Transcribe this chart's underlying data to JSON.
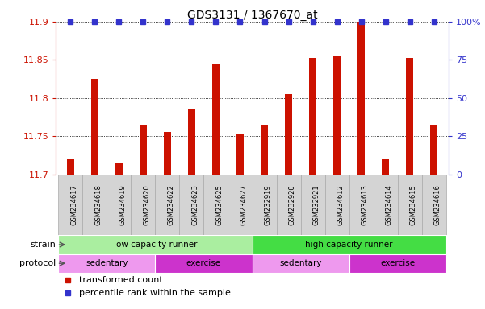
{
  "title": "GDS3131 / 1367670_at",
  "categories": [
    "GSM234617",
    "GSM234618",
    "GSM234619",
    "GSM234620",
    "GSM234622",
    "GSM234623",
    "GSM234625",
    "GSM234627",
    "GSM232919",
    "GSM232920",
    "GSM232921",
    "GSM234612",
    "GSM234613",
    "GSM234614",
    "GSM234615",
    "GSM234616"
  ],
  "bar_values": [
    11.72,
    11.825,
    11.715,
    11.765,
    11.755,
    11.785,
    11.845,
    11.752,
    11.765,
    11.805,
    11.852,
    11.855,
    11.9,
    11.72,
    11.852,
    11.765
  ],
  "bar_color": "#cc1100",
  "percentile_color": "#3333cc",
  "ylim_left": [
    11.7,
    11.9
  ],
  "ylim_right": [
    0,
    100
  ],
  "yticks_left": [
    11.7,
    11.75,
    11.8,
    11.85,
    11.9
  ],
  "yticks_right": [
    0,
    25,
    50,
    75,
    100
  ],
  "ytick_labels_left": [
    "11.7",
    "11.75",
    "11.8",
    "11.85",
    "11.9"
  ],
  "ytick_labels_right": [
    "0",
    "25",
    "50",
    "75",
    "100%"
  ],
  "strain_groups": [
    {
      "label": "low capacity runner",
      "start": 0,
      "end": 8,
      "color": "#aaeea0"
    },
    {
      "label": "high capacity runner",
      "start": 8,
      "end": 16,
      "color": "#44dd44"
    }
  ],
  "protocol_groups": [
    {
      "label": "sedentary",
      "start": 0,
      "end": 4,
      "color": "#ee99ee"
    },
    {
      "label": "exercise",
      "start": 4,
      "end": 8,
      "color": "#cc33cc"
    },
    {
      "label": "sedentary",
      "start": 8,
      "end": 12,
      "color": "#ee99ee"
    },
    {
      "label": "exercise",
      "start": 12,
      "end": 16,
      "color": "#cc33cc"
    }
  ],
  "legend_items": [
    {
      "label": "transformed count",
      "color": "#cc1100"
    },
    {
      "label": "percentile rank within the sample",
      "color": "#3333cc"
    }
  ],
  "strain_label": "strain",
  "protocol_label": "protocol",
  "bar_width": 0.3,
  "tick_cell_color": "#d4d4d4",
  "tick_cell_border": "#aaaaaa"
}
